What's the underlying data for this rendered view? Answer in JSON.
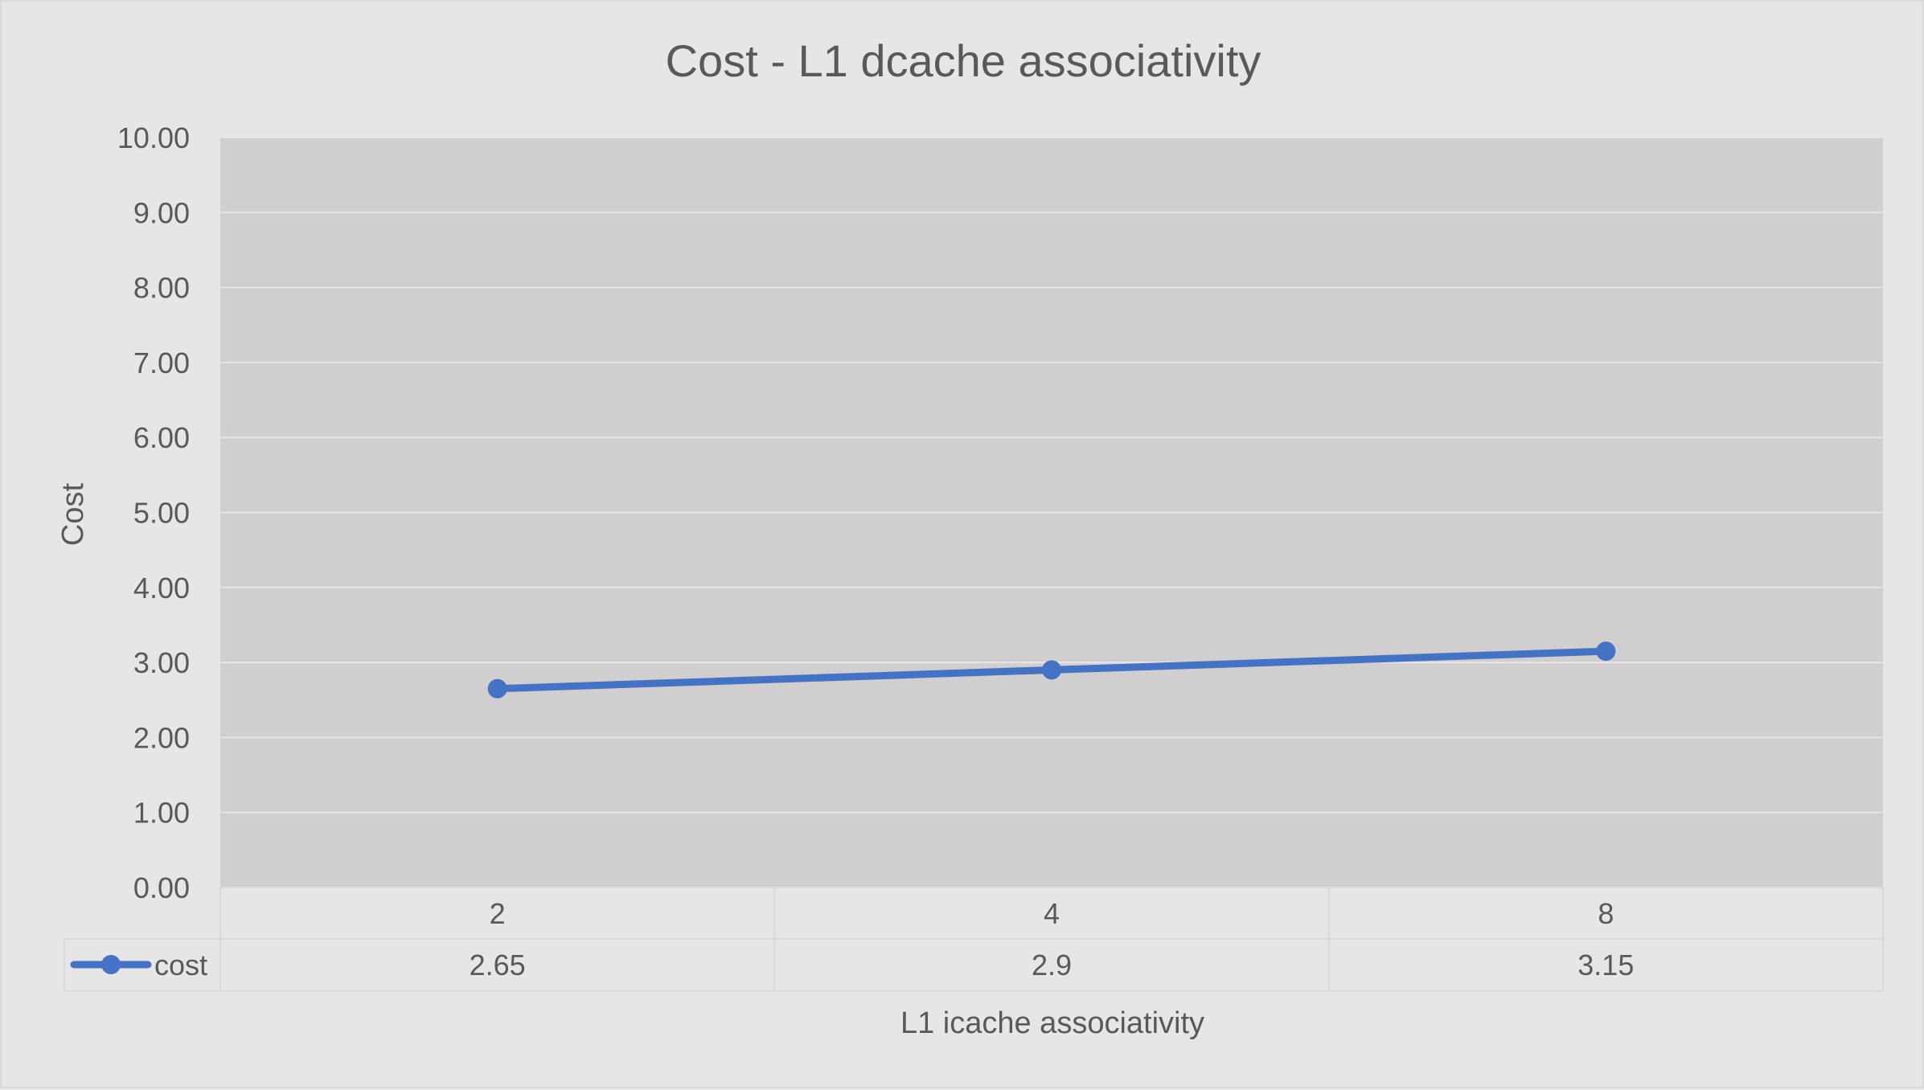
{
  "chart_data": {
    "type": "line",
    "title": "Cost - L1 dcache associativity",
    "xlabel": "L1 icache associativity",
    "ylabel": "Cost",
    "categories": [
      "2",
      "4",
      "8"
    ],
    "series": [
      {
        "name": "cost",
        "values": [
          2.65,
          2.9,
          3.15
        ],
        "value_labels": [
          "2.65",
          "2.9",
          "3.15"
        ]
      }
    ],
    "ylim": [
      0,
      10
    ],
    "yticks": [
      "0.00",
      "1.00",
      "2.00",
      "3.00",
      "4.00",
      "5.00",
      "6.00",
      "7.00",
      "8.00",
      "9.00",
      "10.00"
    ],
    "grid": true,
    "legend": "data-table",
    "data_table": true,
    "colors": {
      "series": "#4472c4",
      "plot_background": "#d0cece",
      "chart_background": "#e6e6e6",
      "gridline": "#e6e6e6",
      "table_border": "#d9d9d9",
      "text": "#595959"
    }
  }
}
